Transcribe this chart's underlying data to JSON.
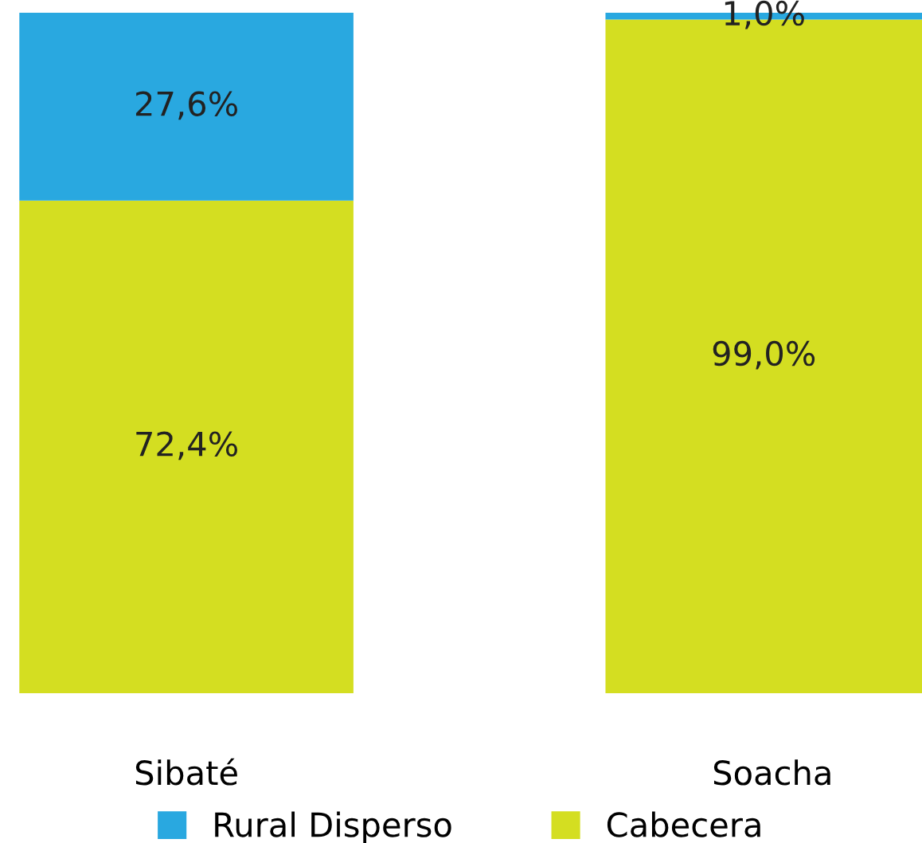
{
  "chart_data": {
    "type": "bar",
    "stacked": true,
    "categories": [
      "Sibaté",
      "Soacha"
    ],
    "series": [
      {
        "name": "Cabecera",
        "color": "#d4de21",
        "values": [
          72.4,
          99.0
        ],
        "value_labels": [
          "72,4%",
          "99,0%"
        ]
      },
      {
        "name": "Rural Disperso",
        "color": "#29a8e0",
        "values": [
          27.6,
          1.0
        ],
        "value_labels": [
          "27,6%",
          "1,0%"
        ]
      }
    ],
    "legend": "bottom",
    "grid": false
  }
}
